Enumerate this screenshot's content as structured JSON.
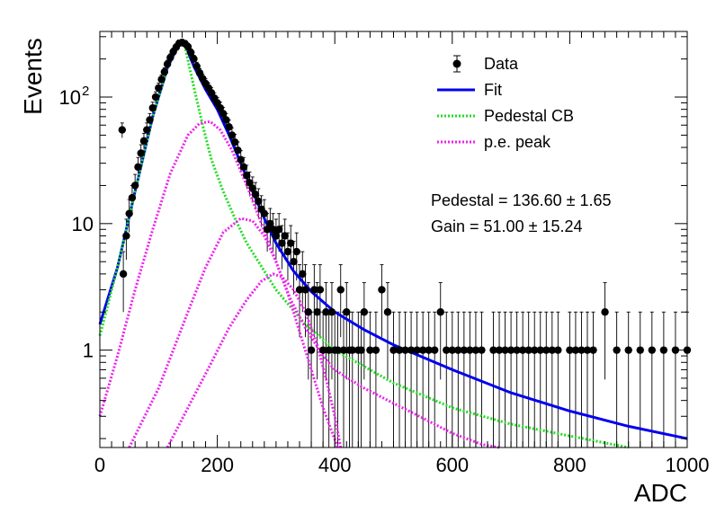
{
  "chart_data": {
    "type": "scatter",
    "xlabel": "ADC",
    "ylabel": "Events",
    "xlim": [
      0,
      1000
    ],
    "ylim": [
      0.17,
      330
    ],
    "y_scale": "log",
    "grid": false,
    "legend_position": "top-right",
    "x_ticks": [
      {
        "value": 0,
        "label": "0"
      },
      {
        "value": 200,
        "label": "200"
      },
      {
        "value": 400,
        "label": "400"
      },
      {
        "value": 600,
        "label": "600"
      },
      {
        "value": 800,
        "label": "800"
      },
      {
        "value": 1000,
        "label": "1000"
      }
    ],
    "y_ticks": [
      {
        "value": 1,
        "label": "1",
        "sup": ""
      },
      {
        "value": 10,
        "label": "10",
        "sup": ""
      },
      {
        "value": 100,
        "label": "10",
        "sup": "2"
      }
    ],
    "legend": [
      {
        "label": "Data",
        "style": "marker",
        "color": "#000000"
      },
      {
        "label": "Fit",
        "style": "solid",
        "color": "#0000ee"
      },
      {
        "label": "Pedestal CB",
        "style": "dotted",
        "color": "#22dd22"
      },
      {
        "label": "p.e. peak",
        "style": "dotted",
        "color": "#ee22ee"
      }
    ],
    "annotations": [
      {
        "label": "Pedestal = 136.60",
        "pm": "±",
        "error": "1.65"
      },
      {
        "label": "Gain = 51.00",
        "pm": "±",
        "error": "15.24"
      }
    ],
    "data_points": [
      [
        38,
        55
      ],
      [
        40,
        4
      ],
      [
        45,
        8
      ],
      [
        50,
        12
      ],
      [
        55,
        16
      ],
      [
        60,
        20
      ],
      [
        65,
        28
      ],
      [
        70,
        36
      ],
      [
        75,
        45
      ],
      [
        80,
        55
      ],
      [
        85,
        66
      ],
      [
        90,
        82
      ],
      [
        95,
        100
      ],
      [
        100,
        118
      ],
      [
        105,
        138
      ],
      [
        110,
        158
      ],
      [
        115,
        182
      ],
      [
        120,
        205
      ],
      [
        125,
        228
      ],
      [
        130,
        248
      ],
      [
        135,
        266
      ],
      [
        140,
        270
      ],
      [
        145,
        264
      ],
      [
        150,
        250
      ],
      [
        155,
        225
      ],
      [
        160,
        200
      ],
      [
        165,
        175
      ],
      [
        170,
        155
      ],
      [
        175,
        140
      ],
      [
        180,
        128
      ],
      [
        185,
        118
      ],
      [
        190,
        108
      ],
      [
        195,
        98
      ],
      [
        200,
        90
      ],
      [
        205,
        82
      ],
      [
        210,
        74
      ],
      [
        215,
        66
      ],
      [
        220,
        58
      ],
      [
        225,
        50
      ],
      [
        230,
        44
      ],
      [
        235,
        38
      ],
      [
        240,
        32
      ],
      [
        245,
        28
      ],
      [
        250,
        24
      ],
      [
        255,
        21
      ],
      [
        260,
        19
      ],
      [
        265,
        17
      ],
      [
        270,
        15
      ],
      [
        275,
        13
      ],
      [
        280,
        12
      ],
      [
        285,
        9
      ],
      [
        290,
        10
      ],
      [
        295,
        9
      ],
      [
        300,
        8
      ],
      [
        305,
        9
      ],
      [
        310,
        7
      ],
      [
        315,
        8
      ],
      [
        320,
        6
      ],
      [
        325,
        7
      ],
      [
        330,
        5
      ],
      [
        335,
        6
      ],
      [
        340,
        3
      ],
      [
        345,
        4
      ],
      [
        350,
        3
      ],
      [
        355,
        2
      ],
      [
        360,
        1
      ],
      [
        365,
        3
      ],
      [
        370,
        2
      ],
      [
        375,
        3
      ],
      [
        380,
        1
      ],
      [
        385,
        2
      ],
      [
        390,
        1
      ],
      [
        395,
        2
      ],
      [
        400,
        1
      ],
      [
        405,
        1
      ],
      [
        410,
        3
      ],
      [
        415,
        1
      ],
      [
        420,
        2
      ],
      [
        425,
        1
      ],
      [
        430,
        1
      ],
      [
        440,
        1
      ],
      [
        445,
        1
      ],
      [
        450,
        2
      ],
      [
        460,
        1
      ],
      [
        470,
        1
      ],
      [
        480,
        3
      ],
      [
        490,
        2
      ],
      [
        500,
        1
      ],
      [
        510,
        1
      ],
      [
        520,
        1
      ],
      [
        530,
        1
      ],
      [
        540,
        1
      ],
      [
        550,
        1
      ],
      [
        560,
        1
      ],
      [
        570,
        1
      ],
      [
        580,
        2
      ],
      [
        590,
        1
      ],
      [
        600,
        1
      ],
      [
        610,
        1
      ],
      [
        620,
        1
      ],
      [
        630,
        1
      ],
      [
        640,
        1
      ],
      [
        650,
        1
      ],
      [
        670,
        1
      ],
      [
        680,
        1
      ],
      [
        690,
        1
      ],
      [
        700,
        1
      ],
      [
        710,
        1
      ],
      [
        720,
        1
      ],
      [
        730,
        1
      ],
      [
        740,
        1
      ],
      [
        750,
        1
      ],
      [
        760,
        1
      ],
      [
        770,
        1
      ],
      [
        780,
        1
      ],
      [
        800,
        1
      ],
      [
        810,
        1
      ],
      [
        820,
        1
      ],
      [
        830,
        1
      ],
      [
        840,
        1
      ],
      [
        860,
        2
      ],
      [
        880,
        1
      ],
      [
        900,
        1
      ],
      [
        920,
        1
      ],
      [
        940,
        1
      ],
      [
        960,
        1
      ],
      [
        980,
        1
      ],
      [
        1000,
        1
      ]
    ],
    "series": [
      {
        "name": "Fit",
        "color": "#0000ee",
        "x": [
          0,
          30,
          60,
          90,
          115,
          135,
          145,
          160,
          180,
          200,
          220,
          240,
          260,
          280,
          300,
          330,
          360,
          400,
          450,
          500,
          600,
          700,
          800,
          900,
          1000
        ],
        "y": [
          1.6,
          4.5,
          18,
          70,
          170,
          265,
          260,
          175,
          115,
          80,
          50,
          30,
          18,
          11,
          7,
          4.2,
          2.9,
          2.0,
          1.45,
          1.1,
          0.7,
          0.46,
          0.33,
          0.25,
          0.2
        ]
      },
      {
        "name": "Pedestal CB",
        "color": "#22dd22",
        "x": [
          0,
          30,
          60,
          90,
          115,
          135,
          145,
          160,
          175,
          190,
          210,
          230,
          250,
          270,
          300,
          350,
          400,
          500,
          600,
          700,
          800,
          900
        ],
        "y": [
          1.3,
          4.5,
          18,
          70,
          170,
          265,
          250,
          120,
          60,
          32,
          18,
          11,
          7,
          5,
          3,
          1.6,
          1.0,
          0.55,
          0.35,
          0.26,
          0.21,
          0.17
        ]
      },
      {
        "name": "p.e. peak 1",
        "color": "#ee22ee",
        "x": [
          0,
          30,
          60,
          90,
          120,
          150,
          170,
          188,
          205,
          225,
          250,
          275,
          300,
          325,
          350,
          380,
          400,
          450,
          500,
          550,
          600,
          650,
          680
        ],
        "y": [
          0.3,
          0.9,
          3,
          9,
          25,
          50,
          62,
          64,
          55,
          38,
          20,
          10,
          5,
          2.5,
          1.5,
          0.9,
          0.7,
          0.5,
          0.38,
          0.29,
          0.22,
          0.18,
          0.17
        ]
      },
      {
        "name": "p.e. peak 2",
        "color": "#ee22ee",
        "x": [
          50,
          100,
          150,
          180,
          210,
          240,
          260,
          280,
          300,
          320,
          340,
          360,
          380,
          405
        ],
        "y": [
          0.17,
          0.5,
          2.0,
          4.5,
          8.5,
          11,
          10.5,
          8,
          5,
          2.8,
          1.4,
          0.7,
          0.35,
          0.17
        ]
      },
      {
        "name": "p.e. peak 3",
        "color": "#ee22ee",
        "x": [
          115,
          150,
          190,
          220,
          250,
          275,
          295,
          310,
          330,
          350,
          370,
          385,
          400,
          410
        ],
        "y": [
          0.17,
          0.35,
          0.8,
          1.5,
          2.5,
          3.5,
          4.0,
          3.8,
          3.0,
          2.0,
          1.1,
          0.6,
          0.3,
          0.17
        ]
      }
    ]
  }
}
